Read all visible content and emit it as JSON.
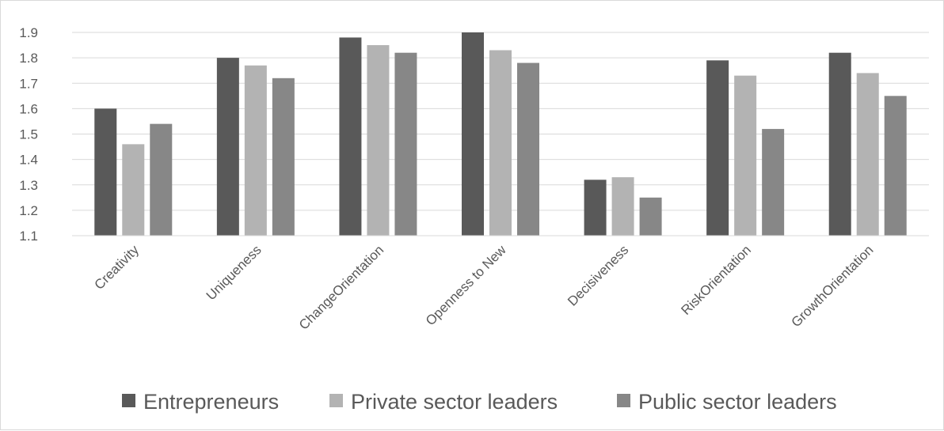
{
  "chart_data": {
    "type": "bar",
    "title": "",
    "xlabel": "",
    "ylabel": "",
    "ylim": [
      1.1,
      1.9
    ],
    "yticks": [
      "1.1",
      "1.2",
      "1.3",
      "1.4",
      "1.5",
      "1.6",
      "1.7",
      "1.8",
      "1.9"
    ],
    "grid": true,
    "legend_position": "bottom",
    "categories": [
      "Creativity",
      "Uniqueness",
      "ChangeOrientation",
      "Openness to New",
      "Decisiveness",
      "RiskOrientation",
      "GrowthOrientation"
    ],
    "series": [
      {
        "name": "Entrepreneurs",
        "color": "#595959",
        "values": [
          1.6,
          1.8,
          1.88,
          1.9,
          1.32,
          1.79,
          1.82
        ]
      },
      {
        "name": "Private sector leaders",
        "color": "#b3b3b3",
        "values": [
          1.46,
          1.77,
          1.85,
          1.83,
          1.33,
          1.73,
          1.74
        ]
      },
      {
        "name": "Public sector leaders",
        "color": "#878787",
        "values": [
          1.54,
          1.72,
          1.82,
          1.78,
          1.25,
          1.52,
          1.65
        ]
      }
    ]
  }
}
